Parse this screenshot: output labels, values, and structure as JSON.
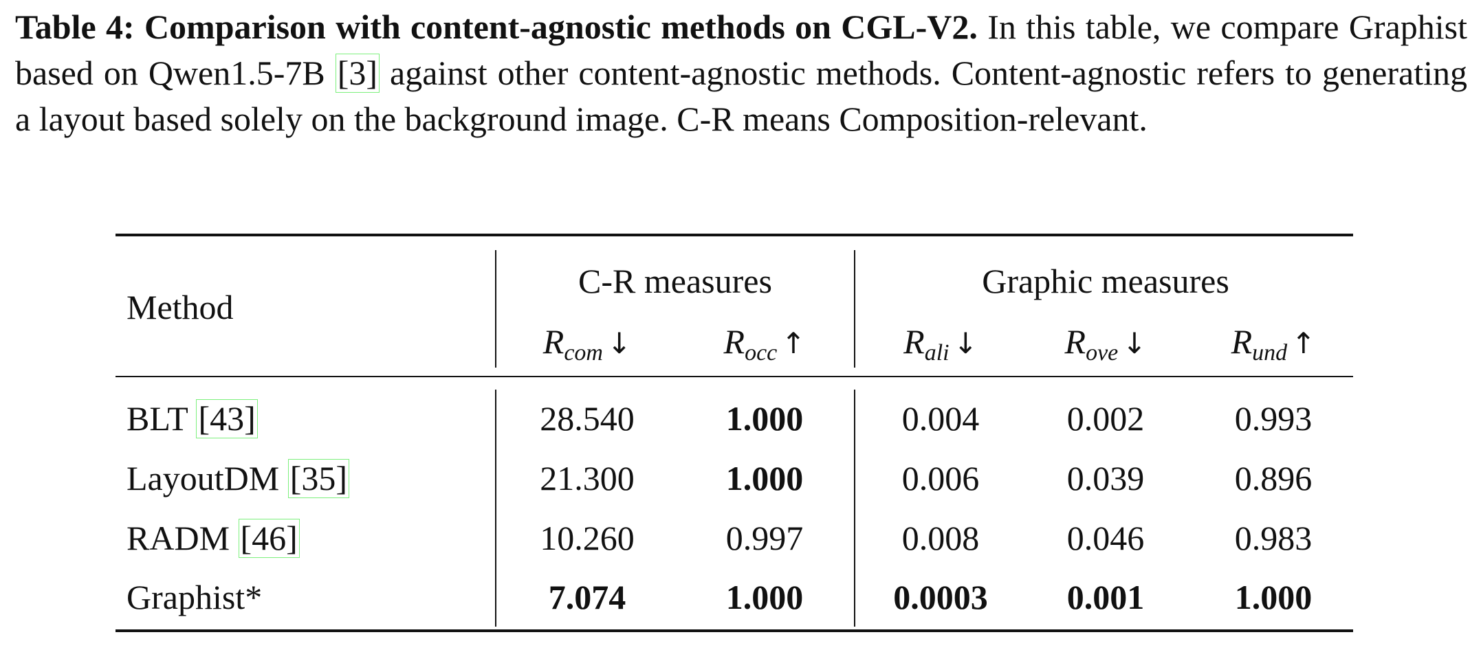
{
  "caption": {
    "label": "Table 4: Comparison with content-agnostic methods on CGL-V2.",
    "text_before_cite": "In this table, we compare Graphist based on Qwen1.5-7B ",
    "cite": "[3]",
    "text_after_cite": " against other content-agnostic methods. Content-agnostic refers to generating a layout based solely on the background image. C-R means Composition-relevant."
  },
  "table": {
    "method_header": "Method",
    "group_cr": "C-R measures",
    "group_graphic": "Graphic measures",
    "metrics": [
      {
        "base": "R",
        "sub": "com",
        "arrow": "↓"
      },
      {
        "base": "R",
        "sub": "occ",
        "arrow": "↑"
      },
      {
        "base": "R",
        "sub": "ali",
        "arrow": "↓"
      },
      {
        "base": "R",
        "sub": "ove",
        "arrow": "↓"
      },
      {
        "base": "R",
        "sub": "und",
        "arrow": "↑"
      }
    ],
    "rows": [
      {
        "name": "BLT ",
        "cite": "[43]",
        "values": [
          "28.540",
          "1.000",
          "0.004",
          "0.002",
          "0.993"
        ],
        "bold": [
          false,
          true,
          false,
          false,
          false
        ]
      },
      {
        "name": "LayoutDM ",
        "cite": "[35]",
        "values": [
          "21.300",
          "1.000",
          "0.006",
          "0.039",
          "0.896"
        ],
        "bold": [
          false,
          true,
          false,
          false,
          false
        ]
      },
      {
        "name": "RADM ",
        "cite": "[46]",
        "values": [
          "10.260",
          "0.997",
          "0.008",
          "0.046",
          "0.983"
        ],
        "bold": [
          false,
          false,
          false,
          false,
          false
        ]
      },
      {
        "name": "Graphist*",
        "cite": "",
        "values": [
          "7.074",
          "1.000",
          "0.0003",
          "0.001",
          "1.000"
        ],
        "bold": [
          true,
          true,
          true,
          true,
          true
        ]
      }
    ]
  }
}
